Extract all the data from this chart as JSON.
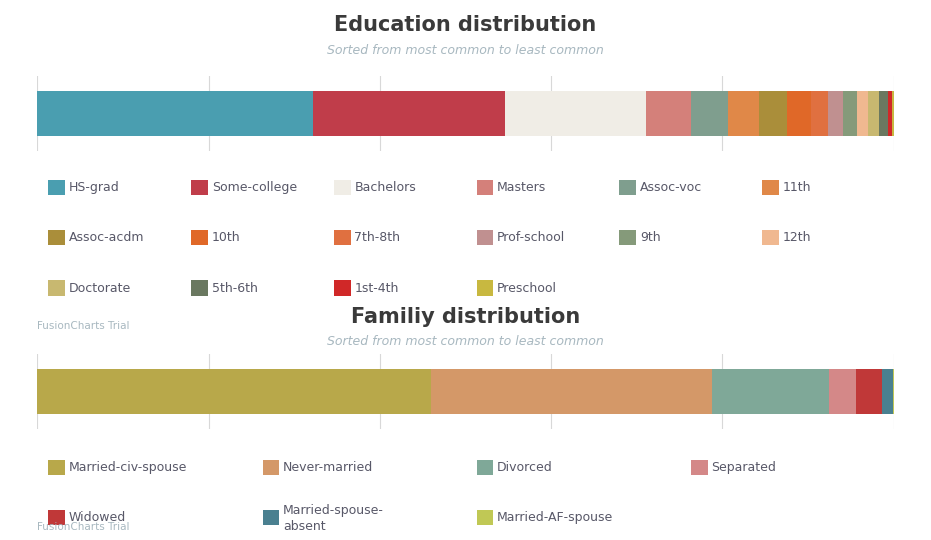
{
  "education": {
    "title": "Education distribution",
    "subtitle": "Sorted from most common to least common",
    "categories": [
      "HS-grad",
      "Some-college",
      "Bachelors",
      "Masters",
      "Assoc-voc",
      "11th",
      "Assoc-acdm",
      "10th",
      "7th-8th",
      "Prof-school",
      "9th",
      "12th",
      "Doctorate",
      "5th-6th",
      "1st-4th",
      "Preschool"
    ],
    "values": [
      10501,
      7291,
      5355,
      1723,
      1382,
      1175,
      1067,
      933,
      646,
      576,
      514,
      433,
      413,
      333,
      168,
      51
    ],
    "colors": [
      "#4a9eb0",
      "#c03d4a",
      "#f0ede6",
      "#d4807a",
      "#7f9e8e",
      "#e08848",
      "#aa8e3a",
      "#e06828",
      "#e07040",
      "#c09090",
      "#859a7a",
      "#f0b890",
      "#c8b870",
      "#6a7860",
      "#d02828",
      "#c8b840"
    ]
  },
  "family": {
    "title": "Familiy distribution",
    "subtitle": "Sorted from most common to least common",
    "categories": [
      "Married-civ-spouse",
      "Never-married",
      "Divorced",
      "Separated",
      "Widowed",
      "Married-spouse-absent",
      "Married-AF-spouse"
    ],
    "values": [
      14976,
      10683,
      4443,
      1025,
      993,
      418,
      23
    ],
    "colors": [
      "#b8a84a",
      "#d49868",
      "#7fa898",
      "#d48888",
      "#c03838",
      "#4a8090",
      "#c0c855"
    ]
  },
  "background_color": "#ffffff",
  "title_color": "#3a3a3a",
  "subtitle_color": "#a8b8c0",
  "watermark_color": "#a8b8c0",
  "gridline_color": "#d8d8d8",
  "legend_text_color": "#585868"
}
